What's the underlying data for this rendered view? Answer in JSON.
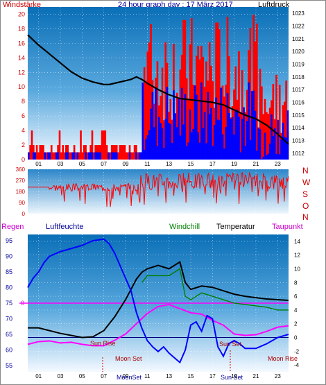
{
  "header": {
    "title": "24 hour graph day : 17 März 2017",
    "left_label": "Windstärke",
    "right_label": "Luftdruck"
  },
  "lower_header": {
    "regen": "Regen",
    "luftfeuchte": "Luftfeuchte",
    "windchill": "Windchill",
    "temperatur": "Temperatur",
    "taupunkt": "Taupunkt"
  },
  "compass": [
    "N",
    "W",
    "S",
    "O",
    "N"
  ],
  "time_ticks": [
    "01",
    "03",
    "05",
    "07",
    "09",
    "11",
    "13",
    "15",
    "17",
    "19",
    "21",
    "23"
  ],
  "astro_labels": {
    "sun_rise": "Sun Rise",
    "moon_set": "Moon Set",
    "sun_set": "Sun Set",
    "moon_rise": "Moon Rise",
    "bottom_moonset": "MoonSet",
    "bottom_sunset": "Sun Set"
  },
  "colors": {
    "panel_top": "#0a6fb7",
    "panel_bottom": "#f4f9ff",
    "wind_gust": "#ff0000",
    "wind_avg": "#0000ff",
    "pressure": "#000000",
    "direction": "#ff0000",
    "humidity": "#0000ff",
    "temperature": "#000000",
    "windchill": "#008000",
    "dewpoint": "#ff00ff",
    "zero_line": "#ff00ff",
    "rain_label": "#cc00cc",
    "title_blue": "#000099",
    "left_axis_red": "#cc0000"
  },
  "chart_data": [
    {
      "type": "line",
      "name": "wind_pressure",
      "x_ticks": [
        "01",
        "03",
        "05",
        "07",
        "09",
        "11",
        "13",
        "15",
        "17",
        "19",
        "21",
        "23"
      ],
      "left_axis": {
        "label": "Windstärke",
        "ticks": [
          0,
          2,
          4,
          6,
          8,
          10,
          12,
          14,
          16,
          18,
          20
        ],
        "ylim": [
          0,
          21
        ]
      },
      "right_axis": {
        "label": "Luftdruck",
        "ticks": [
          1012,
          1013,
          1014,
          1015,
          1016,
          1017,
          1018,
          1019,
          1020,
          1021,
          1022,
          1023
        ],
        "ylim": [
          1011.5,
          1023.5
        ]
      },
      "pressure": {
        "x": [
          0,
          1,
          2,
          3,
          4,
          5,
          6,
          7,
          7.5,
          8,
          9,
          9.5,
          10,
          10.5,
          11,
          12,
          13,
          14,
          15,
          16,
          17,
          18,
          19,
          20,
          21,
          22,
          23,
          24
        ],
        "y": [
          1021.3,
          1020.5,
          1019.8,
          1019.1,
          1018.4,
          1017.9,
          1017.6,
          1017.4,
          1017.4,
          1017.5,
          1017.7,
          1017.8,
          1018.0,
          1017.8,
          1017.5,
          1017.0,
          1016.6,
          1016.3,
          1016.2,
          1016.1,
          1016.0,
          1015.8,
          1015.4,
          1015.0,
          1014.7,
          1014.2,
          1013.5,
          1012.7
        ]
      },
      "gust_summary": {
        "before_10_5h": "mostly 1–2, occasional 4",
        "after_10_5h": "5–20"
      },
      "avg_summary": {
        "before_10_5h": "0–1",
        "after_10_5h": "1–12"
      }
    },
    {
      "type": "line",
      "name": "wind_direction",
      "left_axis": {
        "ticks": [
          0,
          90,
          180,
          270,
          360
        ],
        "ylim": [
          0,
          360
        ]
      },
      "right_labels": [
        "N",
        "W",
        "S",
        "O",
        "N"
      ],
      "summary": "Mostly 180–230 before 10h, dense 200–330 after 10.5h"
    },
    {
      "type": "line",
      "name": "humidity_temperature",
      "x_ticks": [
        "01",
        "03",
        "05",
        "07",
        "09",
        "11",
        "13",
        "15",
        "17",
        "19",
        "21",
        "23"
      ],
      "left_axis": {
        "label": "Luftfeuchte",
        "ticks": [
          55,
          60,
          65,
          70,
          75,
          80,
          85,
          90,
          95
        ],
        "ylim": [
          53,
          97
        ]
      },
      "right_axis": {
        "label": "Temperatur",
        "ticks": [
          -4,
          -2,
          0,
          2,
          4,
          6,
          8,
          10,
          12,
          14
        ],
        "ylim": [
          -5,
          15
        ]
      },
      "rain_axis": {
        "label": "Regen",
        "ticks": [
          0
        ]
      },
      "humidity": {
        "x": [
          0,
          0.5,
          1,
          1.5,
          2,
          3,
          4,
          5,
          6,
          7,
          7.5,
          8,
          8.5,
          9,
          9.5,
          10,
          10.5,
          11,
          11.5,
          12,
          12.5,
          13,
          14,
          14.5,
          15,
          15.5,
          16,
          16.5,
          17,
          17.5,
          18,
          18.5,
          19,
          19.5,
          20,
          21,
          22,
          23,
          24
        ],
        "y": [
          80,
          83,
          85,
          88,
          90,
          91.5,
          92.5,
          93.5,
          95,
          95.5,
          94,
          91,
          87,
          83,
          79,
          72,
          67,
          63,
          61,
          59.5,
          61,
          59,
          56,
          60,
          68,
          69,
          66,
          71,
          70,
          61,
          58,
          62,
          63,
          62,
          60.5,
          60.5,
          62,
          64,
          65
        ]
      },
      "temperature": {
        "x": [
          0,
          1,
          2,
          3,
          4,
          5,
          6,
          7,
          8,
          9,
          9.5,
          10,
          10.5,
          11,
          12,
          13,
          14,
          14.5,
          15,
          16,
          17,
          18,
          19,
          20,
          21,
          22,
          23,
          24
        ],
        "y": [
          1.4,
          1.4,
          1.0,
          0.6,
          0.3,
          0,
          0.1,
          1,
          3,
          5.5,
          7,
          8.5,
          9.5,
          10,
          10.5,
          10,
          11,
          8,
          7,
          7.5,
          7.3,
          6.8,
          6.3,
          6.0,
          5.8,
          5.6,
          5.5,
          5.4
        ]
      },
      "windchill": {
        "x": [
          10.5,
          11,
          12,
          13,
          14,
          14.5,
          15,
          16,
          17,
          18,
          19,
          20,
          21,
          22,
          23,
          24
        ],
        "y": [
          8,
          9,
          9,
          9,
          10,
          6,
          5.5,
          6.5,
          6.0,
          5.5,
          5.0,
          4.8,
          4.6,
          4.4,
          4.0,
          4.0
        ]
      },
      "dewpoint": {
        "x": [
          0,
          1,
          2,
          3,
          4,
          5,
          6,
          7,
          8,
          9,
          10,
          11,
          12,
          13,
          14,
          15,
          16,
          17,
          18,
          19,
          20,
          21,
          22,
          23,
          24
        ],
        "y": [
          -1,
          -0.6,
          -0.5,
          -0.8,
          -0.7,
          -1,
          -1.2,
          -1.2,
          -0.4,
          0.5,
          2,
          3.5,
          4.5,
          4.8,
          4.2,
          3.6,
          3.4,
          2.5,
          1.8,
          0.5,
          0.3,
          0.4,
          0.9,
          1.5,
          1.7
        ]
      }
    }
  ]
}
